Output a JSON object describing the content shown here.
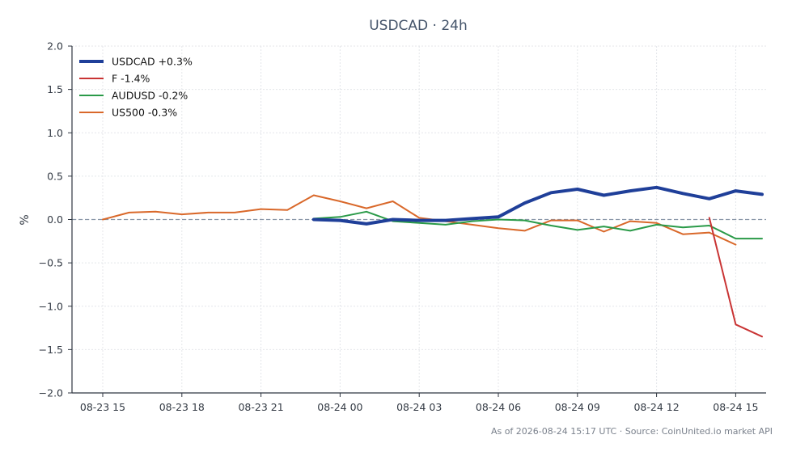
{
  "chart_data": {
    "type": "line",
    "title": "USDCAD · 24h",
    "xlabel": "",
    "ylabel": "%",
    "ylim": [
      -2.0,
      2.0
    ],
    "yticks": [
      2.0,
      1.5,
      1.0,
      0.5,
      0.0,
      -0.5,
      -1.0,
      -1.5,
      -2.0
    ],
    "ytick_labels": [
      "2.0",
      "1.5",
      "1.0",
      "0.5",
      "0.0",
      "−0.5",
      "−1.0",
      "−1.5",
      "−2.0"
    ],
    "xticks": [
      "08-23 15",
      "08-23 18",
      "08-23 21",
      "08-24 00",
      "08-24 03",
      "08-24 06",
      "08-24 09",
      "08-24 12",
      "08-24 15"
    ],
    "x_hours": [
      -1,
      0,
      1,
      2,
      3,
      4,
      5,
      6,
      7,
      8,
      9,
      10,
      11,
      12,
      13,
      14,
      15,
      16,
      17,
      18,
      19,
      20,
      21,
      22,
      23,
      24,
      25
    ],
    "grid": true,
    "zero_line": true,
    "legend_position": "top-left",
    "series": [
      {
        "name": "USDCAD +0.3%",
        "color": "#1f3f99",
        "width": 4,
        "values": [
          null,
          null,
          null,
          null,
          null,
          null,
          null,
          null,
          0.0,
          -0.01,
          -0.05,
          0.0,
          -0.01,
          -0.01,
          0.01,
          0.03,
          0.19,
          0.31,
          0.35,
          0.28,
          0.33,
          0.37,
          0.3,
          0.24,
          0.33,
          0.29
        ]
      },
      {
        "name": "F -1.4%",
        "color": "#c93434",
        "width": 2,
        "values": [
          null,
          null,
          null,
          null,
          null,
          null,
          null,
          null,
          null,
          null,
          null,
          null,
          null,
          null,
          null,
          null,
          null,
          null,
          null,
          null,
          null,
          null,
          null,
          0.02,
          -1.21,
          -1.35
        ]
      },
      {
        "name": "AUDUSD -0.2%",
        "color": "#2a9a48",
        "width": 2,
        "values": [
          null,
          null,
          null,
          null,
          null,
          null,
          null,
          null,
          0.01,
          0.03,
          0.09,
          -0.02,
          -0.04,
          -0.06,
          -0.02,
          0.0,
          -0.01,
          -0.07,
          -0.12,
          -0.08,
          -0.13,
          -0.06,
          -0.09,
          -0.07,
          -0.22,
          -0.22
        ]
      },
      {
        "name": "US500 -0.3%",
        "color": "#d9682a",
        "width": 2,
        "values": [
          0.0,
          0.08,
          0.09,
          0.06,
          0.08,
          0.08,
          0.12,
          0.11,
          0.28,
          0.21,
          0.13,
          0.21,
          0.02,
          -0.02,
          -0.06,
          -0.1,
          -0.13,
          -0.01,
          -0.01,
          -0.14,
          -0.02,
          -0.04,
          -0.17,
          -0.15,
          -0.29
        ]
      }
    ],
    "footer": "As of 2026-08-24 15:17 UTC · Source: CoinUnited.io market API"
  }
}
